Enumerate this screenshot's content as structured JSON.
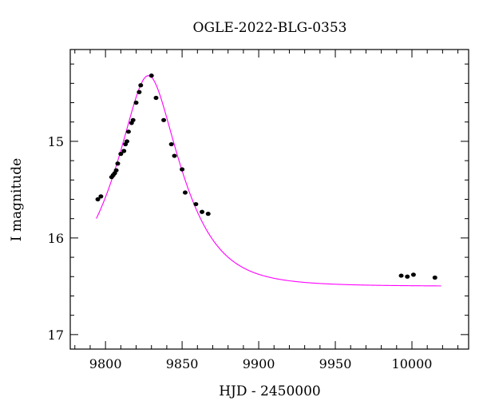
{
  "chart_data": {
    "type": "scatter",
    "title": "OGLE-2022-BLG-0353",
    "xlabel": "HJD - 2450000",
    "ylabel": "I magnitude",
    "xlim": [
      9777,
      10037
    ],
    "ylim": [
      17.15,
      14.05
    ],
    "y_inverted": true,
    "x_ticks": [
      9800,
      9850,
      9900,
      9950,
      10000
    ],
    "x_tick_labels": [
      "9800",
      "9850",
      "9900",
      "9950",
      "10000"
    ],
    "y_ticks": [
      15,
      16,
      17
    ],
    "y_tick_labels": [
      "15",
      "16",
      "17"
    ],
    "grid": false,
    "series": [
      {
        "kind": "points",
        "color": "#000000",
        "x": [
          9795,
          9797,
          9804,
          9805,
          9806,
          9807,
          9808,
          9810,
          9812,
          9813,
          9814,
          9815,
          9817,
          9818,
          9820,
          9822,
          9823,
          9830,
          9833,
          9838,
          9843,
          9845,
          9850,
          9852,
          9859,
          9863,
          9867,
          9993,
          9997,
          10001,
          10015
        ],
        "y": [
          15.6,
          15.57,
          15.37,
          15.35,
          15.33,
          15.3,
          15.23,
          15.13,
          15.1,
          15.03,
          15.0,
          14.9,
          14.81,
          14.78,
          14.6,
          14.49,
          14.42,
          14.32,
          14.55,
          14.78,
          15.03,
          15.15,
          15.29,
          15.53,
          15.65,
          15.73,
          15.75,
          16.39,
          16.4,
          16.38,
          16.41
        ]
      },
      {
        "kind": "model",
        "color": "#ff00ff",
        "model": {
          "baseline": 16.5,
          "peak_x": 9828,
          "peak_mag": 14.32,
          "u0": 0.52,
          "tE": 26
        },
        "x_range": [
          9794,
          10019
        ]
      }
    ]
  }
}
